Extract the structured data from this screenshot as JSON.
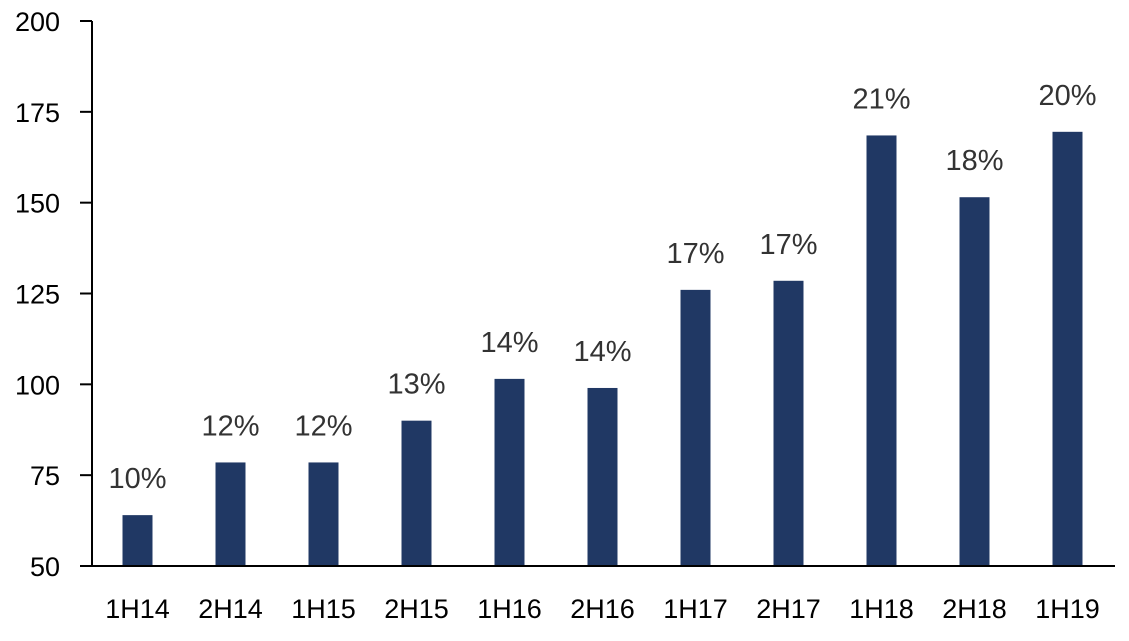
{
  "chart_data": {
    "type": "bar",
    "title": "",
    "xlabel": "",
    "ylabel": "",
    "categories": [
      "1H14",
      "2H14",
      "1H15",
      "2H15",
      "1H16",
      "2H16",
      "1H17",
      "2H17",
      "1H18",
      "2H18",
      "1H19"
    ],
    "values": [
      64,
      78.5,
      78.5,
      90,
      101.5,
      99,
      126,
      128.5,
      168.5,
      151.5,
      169.5
    ],
    "data_labels": [
      "10%",
      "12%",
      "12%",
      "13%",
      "14%",
      "14%",
      "17%",
      "17%",
      "21%",
      "18%",
      "20%"
    ],
    "ylim": [
      50,
      200
    ],
    "yticks": [
      "50",
      "75",
      "100",
      "125",
      "150",
      "175",
      "200"
    ],
    "grid": false,
    "legend": "none",
    "bar_color": "#203864",
    "label_color": "#333333"
  }
}
